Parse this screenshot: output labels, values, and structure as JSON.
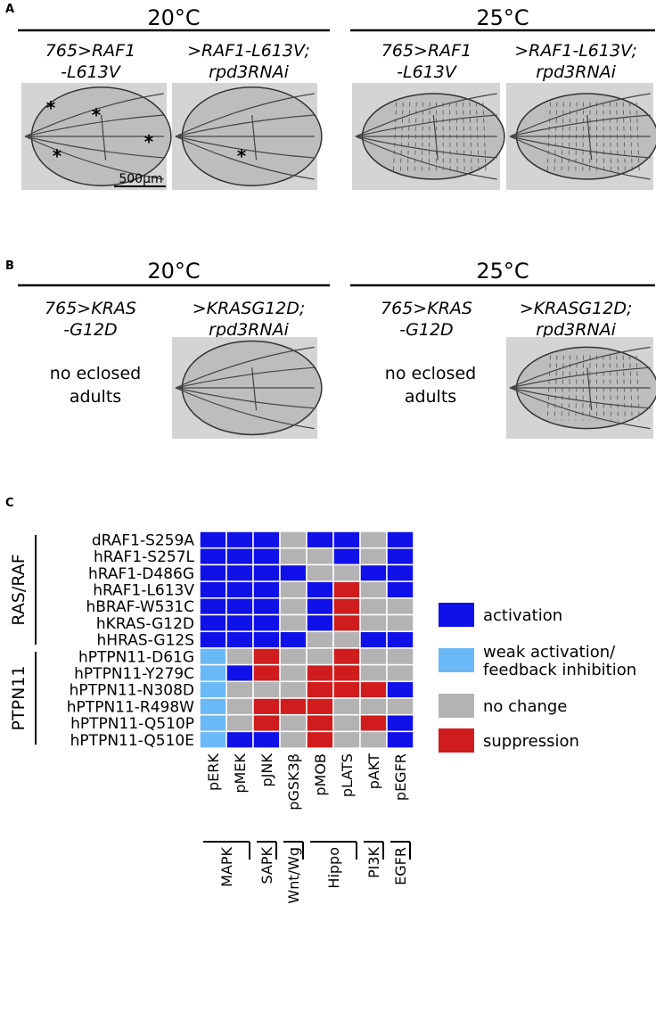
{
  "panel_a": {
    "label": "A",
    "groups": [
      {
        "temperature": "20°C",
        "genotypes": [
          [
            "765>RAF1",
            "-L613V"
          ],
          [
            ">RAF1-L613V;",
            "rpd3RNAi"
          ]
        ]
      },
      {
        "temperature": "25°C",
        "genotypes": [
          [
            "765>RAF1",
            "-L613V"
          ],
          [
            ">RAF1-L613V;",
            "rpd3RNAi"
          ]
        ]
      }
    ],
    "asterisk": "*",
    "scale_bar": "500µm"
  },
  "panel_b": {
    "label": "B",
    "groups": [
      {
        "temperature": "20°C",
        "genotypes": [
          [
            "765>KRAS",
            "-G12D"
          ],
          [
            ">KRASG12D;",
            "rpd3RNAi"
          ]
        ]
      },
      {
        "temperature": "25°C",
        "genotypes": [
          [
            "765>KRAS",
            "-G12D"
          ],
          [
            ">KRASG12D;",
            "rpd3RNAi"
          ]
        ]
      }
    ],
    "note": [
      "no eclosed",
      "adults"
    ]
  },
  "panel_c": {
    "label": "C",
    "columns": [
      "pERK",
      "pMEK",
      "pJNK",
      "pGSK3β",
      "pMOB",
      "pLATS",
      "pAKT",
      "pEGFR"
    ],
    "column_groups": [
      {
        "name": "MAPK",
        "span": [
          0,
          1
        ]
      },
      {
        "name": "SAPK",
        "span": [
          2,
          2
        ]
      },
      {
        "name": "Wnt/Wg",
        "span": [
          3,
          3
        ]
      },
      {
        "name": "Hippo",
        "span": [
          4,
          5
        ]
      },
      {
        "name": "PI3K",
        "span": [
          6,
          6
        ]
      },
      {
        "name": "EGFR",
        "span": [
          7,
          7
        ]
      }
    ],
    "row_groups": [
      {
        "name": "RAS/RAF",
        "span": [
          0,
          6
        ]
      },
      {
        "name": "PTPN11",
        "span": [
          7,
          12
        ]
      }
    ],
    "legend": [
      {
        "label": [
          "activation"
        ],
        "color": "#1010e8"
      },
      {
        "label": [
          "weak activation/",
          "feedback inhibition"
        ],
        "color": "#6ab8f5"
      },
      {
        "label": [
          "no change"
        ],
        "color": "#b3b3b3"
      },
      {
        "label": [
          "suppression"
        ],
        "color": "#d01c1c"
      }
    ],
    "rows": [
      {
        "label": "dRAF1-S259A",
        "cells": [
          0,
          0,
          0,
          2,
          0,
          0,
          2,
          0
        ]
      },
      {
        "label": "hRAF1-S257L",
        "cells": [
          0,
          0,
          0,
          2,
          2,
          0,
          2,
          0
        ]
      },
      {
        "label": "hRAF1-D486G",
        "cells": [
          0,
          0,
          0,
          0,
          2,
          2,
          0,
          0
        ]
      },
      {
        "label": "hRAF1-L613V",
        "cells": [
          0,
          0,
          0,
          2,
          0,
          3,
          2,
          0
        ]
      },
      {
        "label": "hBRAF-W531C",
        "cells": [
          0,
          0,
          0,
          2,
          0,
          3,
          2,
          2
        ]
      },
      {
        "label": "hKRAS-G12D",
        "cells": [
          0,
          0,
          0,
          2,
          0,
          3,
          2,
          2
        ]
      },
      {
        "label": "hHRAS-G12S",
        "cells": [
          0,
          0,
          0,
          0,
          2,
          2,
          0,
          0
        ]
      },
      {
        "label": "hPTPN11-D61G",
        "cells": [
          1,
          2,
          3,
          2,
          2,
          3,
          2,
          2
        ]
      },
      {
        "label": "hPTPN11-Y279C",
        "cells": [
          1,
          0,
          3,
          2,
          3,
          3,
          2,
          2
        ]
      },
      {
        "label": "hPTPN11-N308D",
        "cells": [
          1,
          2,
          2,
          2,
          3,
          3,
          3,
          0
        ]
      },
      {
        "label": "hPTPN11-R498W",
        "cells": [
          1,
          2,
          3,
          3,
          3,
          2,
          2,
          2
        ]
      },
      {
        "label": "hPTPN11-Q510P",
        "cells": [
          1,
          2,
          3,
          2,
          3,
          2,
          3,
          0
        ]
      },
      {
        "label": "hPTPN11-Q510E",
        "cells": [
          1,
          0,
          0,
          2,
          3,
          2,
          2,
          0
        ]
      }
    ]
  }
}
